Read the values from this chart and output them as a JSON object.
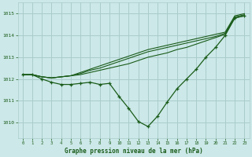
{
  "title": "Graphe pression niveau de la mer (hPa)",
  "background_color": "#cce8e8",
  "grid_color": "#aacccc",
  "line_color": "#1a5c1a",
  "xlim": [
    -0.5,
    23.5
  ],
  "ylim": [
    1009.3,
    1015.5
  ],
  "yticks": [
    1010,
    1011,
    1012,
    1013,
    1014,
    1015
  ],
  "xticks": [
    0,
    1,
    2,
    3,
    4,
    5,
    6,
    7,
    8,
    9,
    10,
    11,
    12,
    13,
    14,
    15,
    16,
    17,
    18,
    19,
    20,
    21,
    22,
    23
  ],
  "series_smooth": [
    [
      1012.2,
      1012.2,
      1012.1,
      1012.05,
      1012.1,
      1012.15,
      1012.2,
      1012.3,
      1012.4,
      1012.5,
      1012.6,
      1012.7,
      1012.85,
      1013.0,
      1013.1,
      1013.2,
      1013.35,
      1013.45,
      1013.6,
      1013.75,
      1013.9,
      1014.05,
      1014.8,
      1014.9
    ],
    [
      1012.2,
      1012.2,
      1012.1,
      1012.05,
      1012.1,
      1012.15,
      1012.25,
      1012.4,
      1012.5,
      1012.65,
      1012.8,
      1012.95,
      1013.1,
      1013.25,
      1013.35,
      1013.45,
      1013.55,
      1013.65,
      1013.75,
      1013.85,
      1013.95,
      1014.1,
      1014.85,
      1014.95
    ],
    [
      1012.2,
      1012.2,
      1012.1,
      1012.05,
      1012.1,
      1012.15,
      1012.3,
      1012.45,
      1012.6,
      1012.75,
      1012.9,
      1013.05,
      1013.2,
      1013.35,
      1013.45,
      1013.55,
      1013.65,
      1013.75,
      1013.85,
      1013.95,
      1014.05,
      1014.15,
      1014.9,
      1015.0
    ]
  ],
  "series_marker": [
    1012.2,
    1012.2,
    1012.0,
    1011.85,
    1011.75,
    1011.75,
    1011.8,
    1011.85,
    1011.75,
    1011.8,
    1011.2,
    1010.65,
    1010.05,
    1009.82,
    1010.3,
    1010.95,
    1011.55,
    1012.0,
    1012.45,
    1013.0,
    1013.45,
    1014.0,
    1014.8,
    1014.9
  ]
}
